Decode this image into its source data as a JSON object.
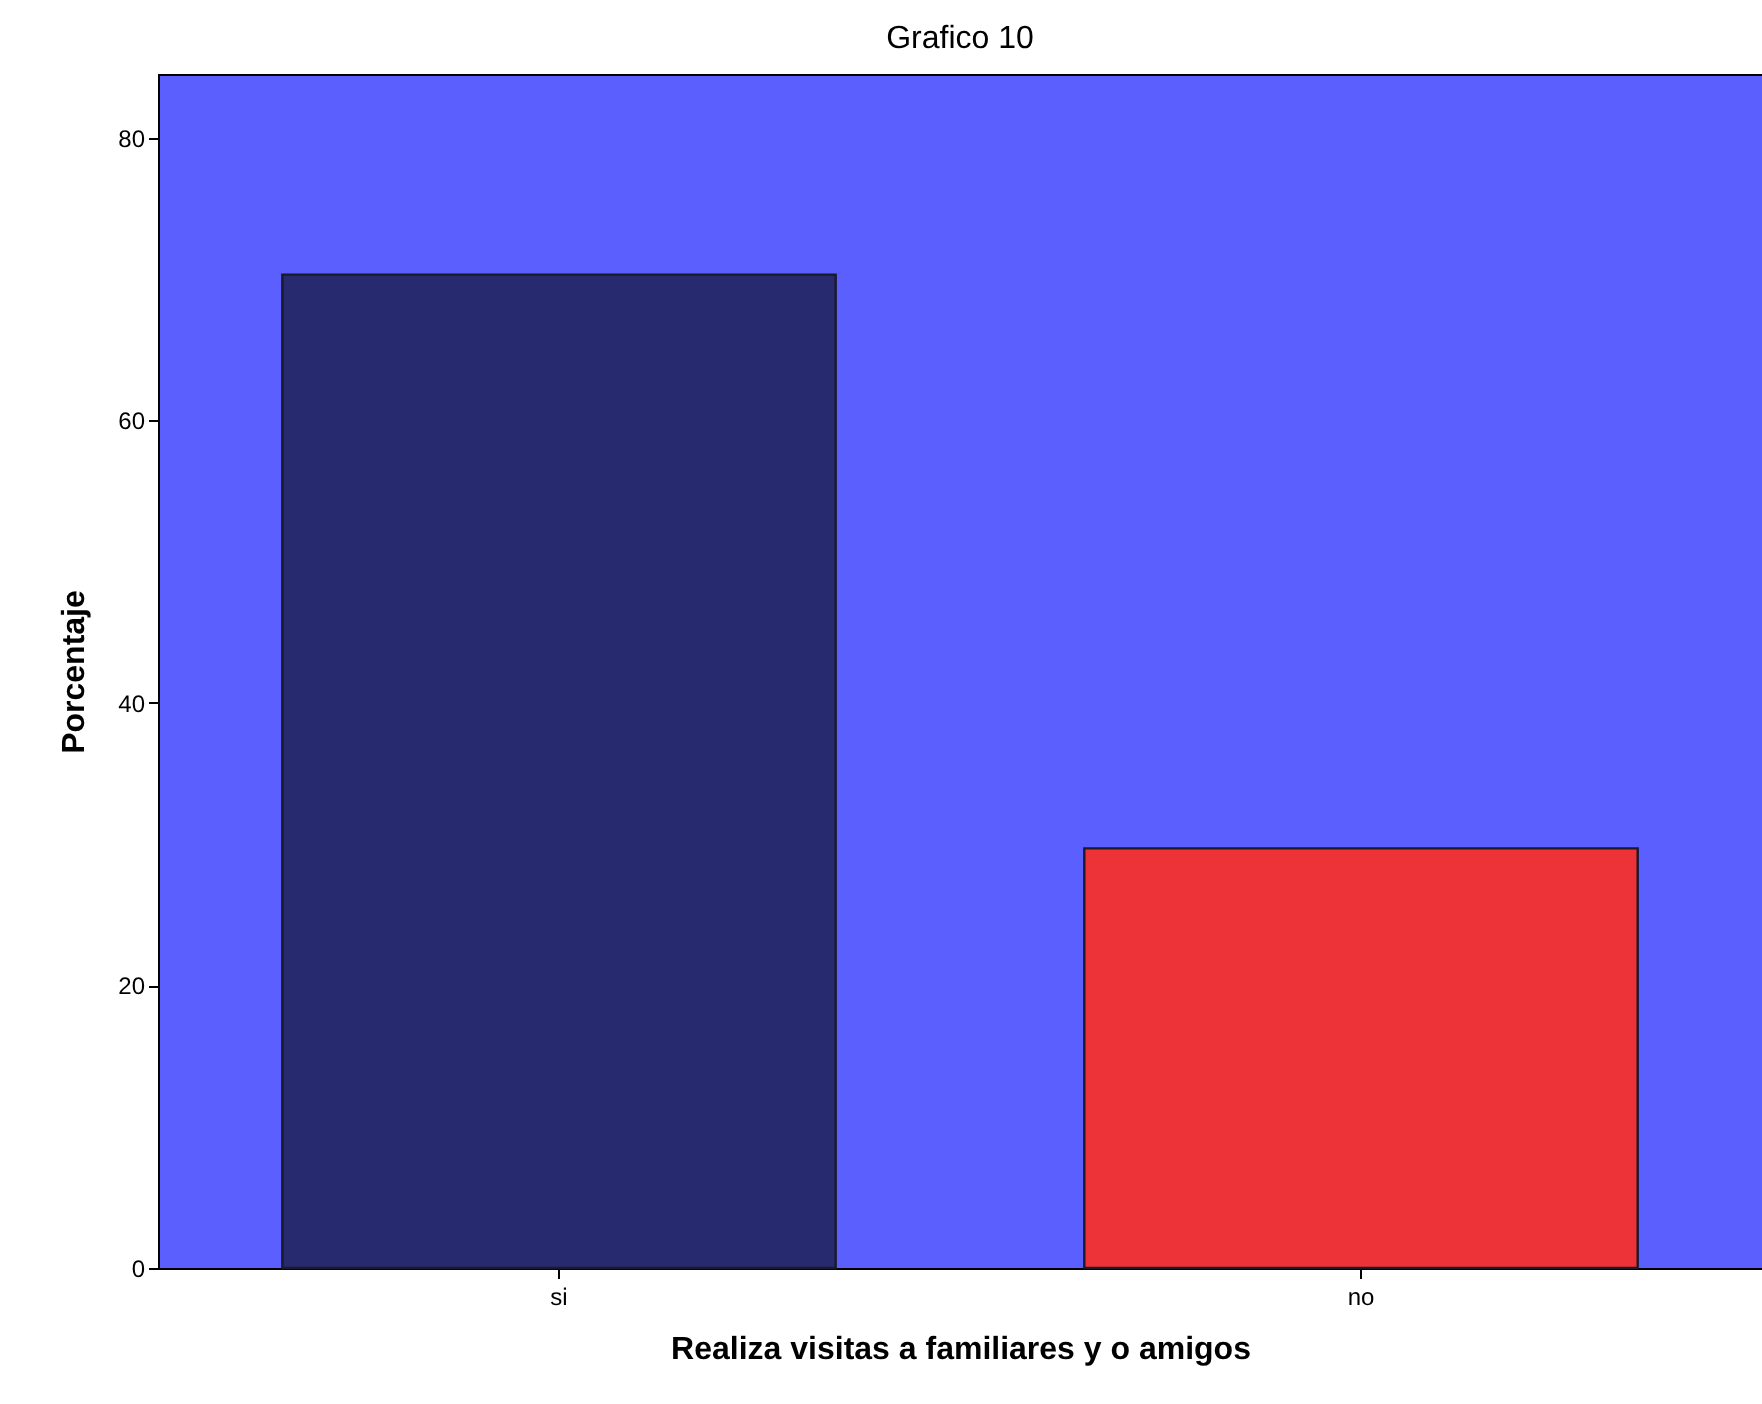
{
  "chart_data": {
    "type": "bar",
    "title": "Grafico 10",
    "xlabel": "Realiza visitas a familiares y o amigos",
    "ylabel": "Porcentaje",
    "categories": [
      "si",
      "no"
    ],
    "values": [
      70.3,
      29.7
    ],
    "colors": [
      "#272a6e",
      "#ee3338"
    ],
    "ylim": [
      0,
      84.5
    ],
    "yticks": [
      0,
      20,
      40,
      60,
      80
    ],
    "grid": false,
    "legend": false
  }
}
